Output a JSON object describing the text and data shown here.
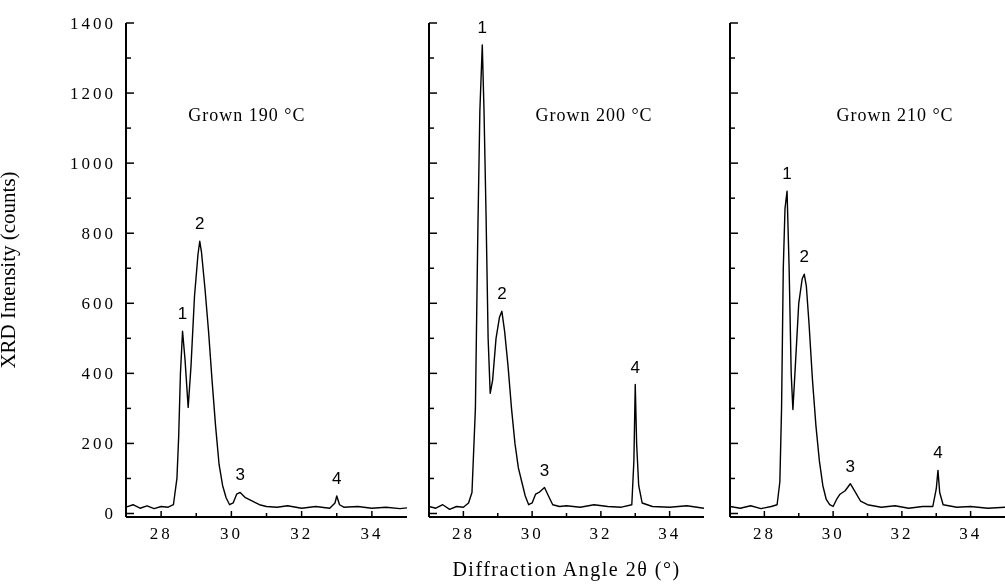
{
  "chart_data": [
    {
      "type": "line",
      "title": "Grown 190 °C",
      "ylabel": "XRD Intensity (counts)",
      "color": "#000000",
      "x": [
        27.0,
        27.2,
        27.4,
        27.6,
        27.8,
        28.0,
        28.2,
        28.35,
        28.45,
        28.5,
        28.55,
        28.61,
        28.68,
        28.77,
        28.85,
        28.95,
        29.05,
        29.1,
        29.15,
        29.25,
        29.35,
        29.45,
        29.55,
        29.65,
        29.75,
        29.85,
        29.95,
        30.05,
        30.15,
        30.25,
        30.4,
        30.6,
        30.8,
        31.0,
        31.3,
        31.6,
        32.0,
        32.4,
        32.8,
        32.95,
        33.0,
        33.08,
        33.2,
        33.6,
        34.0,
        34.4,
        34.8,
        35.0
      ],
      "values": [
        18,
        25,
        15,
        22,
        14,
        20,
        18,
        25,
        100,
        220,
        400,
        520,
        440,
        303,
        420,
        620,
        740,
        777,
        745,
        640,
        520,
        380,
        250,
        140,
        80,
        45,
        25,
        30,
        55,
        60,
        45,
        35,
        25,
        20,
        18,
        22,
        15,
        20,
        15,
        30,
        50,
        25,
        18,
        20,
        15,
        18,
        14,
        16
      ],
      "xlim": [
        27,
        35
      ],
      "xticks": [
        28,
        {
          "value": 29,
          "label": null
        },
        30,
        {
          "value": 31,
          "label": null
        },
        32,
        {
          "value": 33,
          "label": null
        },
        34
      ],
      "ylim": [
        -10,
        1400
      ],
      "yticks": [
        0,
        {
          "value": 100,
          "label": null
        },
        200,
        {
          "value": 300,
          "label": null
        },
        400,
        {
          "value": 500,
          "label": null
        },
        600,
        {
          "value": 700,
          "label": null
        },
        800,
        {
          "value": 900,
          "label": null
        },
        1000,
        {
          "value": 1100,
          "label": null
        },
        1200,
        {
          "value": 1300,
          "label": null
        },
        1400
      ],
      "annotations": [
        {
          "text": "1",
          "x": 28.61,
          "y": 520
        },
        {
          "text": "2",
          "x": 29.1,
          "y": 777
        },
        {
          "text": "3",
          "x": 30.25,
          "y": 60
        },
        {
          "text": "4",
          "x": 33.0,
          "y": 50
        }
      ]
    },
    {
      "type": "line",
      "title": "Grown 200 °C",
      "xlabel": "Diffraction Angle 2θ (°)",
      "color": "#000000",
      "tick_labels": "x",
      "x": [
        27.0,
        27.2,
        27.4,
        27.6,
        27.8,
        28.0,
        28.15,
        28.25,
        28.35,
        28.42,
        28.48,
        28.55,
        28.6,
        28.66,
        28.72,
        28.78,
        28.85,
        28.95,
        29.05,
        29.12,
        29.2,
        29.3,
        29.4,
        29.5,
        29.6,
        29.7,
        29.8,
        29.9,
        30.0,
        30.1,
        30.2,
        30.36,
        30.5,
        30.6,
        30.8,
        31.0,
        31.4,
        31.8,
        32.2,
        32.6,
        32.9,
        32.96,
        33.0,
        33.04,
        33.1,
        33.2,
        33.5,
        34.0,
        34.5,
        35.0
      ],
      "values": [
        20,
        15,
        25,
        12,
        20,
        18,
        30,
        60,
        300,
        800,
        1150,
        1337,
        1150,
        850,
        500,
        343,
        380,
        500,
        560,
        577,
        520,
        420,
        300,
        200,
        130,
        90,
        50,
        25,
        30,
        55,
        60,
        74,
        45,
        25,
        20,
        22,
        18,
        25,
        20,
        18,
        25,
        150,
        368,
        200,
        80,
        30,
        20,
        18,
        22,
        15
      ],
      "xlim": [
        27,
        35
      ],
      "xticks": [
        28,
        {
          "value": 29,
          "label": null
        },
        30,
        {
          "value": 31,
          "label": null
        },
        32,
        {
          "value": 33,
          "label": null
        },
        34
      ],
      "ylim": [
        -10,
        1400
      ],
      "yticks": [
        0,
        {
          "value": 100,
          "label": null
        },
        200,
        {
          "value": 300,
          "label": null
        },
        400,
        {
          "value": 500,
          "label": null
        },
        600,
        {
          "value": 700,
          "label": null
        },
        800,
        {
          "value": 900,
          "label": null
        },
        1000,
        {
          "value": 1100,
          "label": null
        },
        1200,
        {
          "value": 1300,
          "label": null
        },
        1400
      ],
      "annotations": [
        {
          "text": "1",
          "x": 28.55,
          "y": 1337
        },
        {
          "text": "2",
          "x": 29.12,
          "y": 577
        },
        {
          "text": "3",
          "x": 30.36,
          "y": 74
        },
        {
          "text": "4",
          "x": 33.0,
          "y": 368
        }
      ]
    },
    {
      "type": "line",
      "title": "Grown 210 °C",
      "color": "#000000",
      "tick_labels": "x",
      "x": [
        27.0,
        27.3,
        27.6,
        27.9,
        28.2,
        28.37,
        28.45,
        28.5,
        28.55,
        28.6,
        28.66,
        28.72,
        28.78,
        28.83,
        28.9,
        29.0,
        29.1,
        29.16,
        29.22,
        29.3,
        29.4,
        29.5,
        29.6,
        29.7,
        29.8,
        29.9,
        30.0,
        30.1,
        30.2,
        30.35,
        30.5,
        30.65,
        30.8,
        31.0,
        31.4,
        31.8,
        32.2,
        32.6,
        32.9,
        33.0,
        33.05,
        33.1,
        33.2,
        33.6,
        34.0,
        34.5,
        35.0
      ],
      "values": [
        20,
        15,
        22,
        14,
        20,
        25,
        90,
        300,
        700,
        870,
        920,
        700,
        400,
        297,
        420,
        600,
        670,
        683,
        650,
        540,
        380,
        250,
        150,
        80,
        40,
        25,
        20,
        40,
        55,
        65,
        85,
        60,
        35,
        25,
        18,
        22,
        15,
        20,
        20,
        70,
        123,
        60,
        25,
        18,
        20,
        15,
        18
      ],
      "xlim": [
        27,
        35
      ],
      "xticks": [
        28,
        {
          "value": 29,
          "label": null
        },
        30,
        {
          "value": 31,
          "label": null
        },
        32,
        {
          "value": 33,
          "label": null
        },
        34
      ],
      "ylim": [
        -10,
        1400
      ],
      "yticks": [
        0,
        {
          "value": 100,
          "label": null
        },
        200,
        {
          "value": 300,
          "label": null
        },
        400,
        {
          "value": 500,
          "label": null
        },
        600,
        {
          "value": 700,
          "label": null
        },
        800,
        {
          "value": 900,
          "label": null
        },
        1000,
        {
          "value": 1100,
          "label": null
        },
        1200,
        {
          "value": 1300,
          "label": null
        },
        1400
      ],
      "annotations": [
        {
          "text": "1",
          "x": 28.66,
          "y": 920
        },
        {
          "text": "2",
          "x": 29.16,
          "y": 683
        },
        {
          "text": "3",
          "x": 30.5,
          "y": 85
        },
        {
          "text": "4",
          "x": 33.05,
          "y": 123
        }
      ]
    }
  ]
}
